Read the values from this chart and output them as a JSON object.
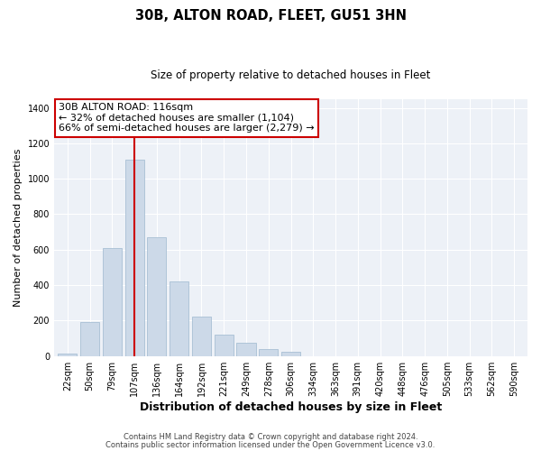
{
  "title": "30B, ALTON ROAD, FLEET, GU51 3HN",
  "subtitle": "Size of property relative to detached houses in Fleet",
  "xlabel": "Distribution of detached houses by size in Fleet",
  "ylabel": "Number of detached properties",
  "bar_values": [
    15,
    190,
    610,
    1110,
    670,
    420,
    220,
    120,
    75,
    40,
    25,
    0,
    0,
    0,
    0,
    0,
    0,
    0,
    0,
    0,
    0
  ],
  "bar_labels": [
    "22sqm",
    "50sqm",
    "79sqm",
    "107sqm",
    "136sqm",
    "164sqm",
    "192sqm",
    "221sqm",
    "249sqm",
    "278sqm",
    "306sqm",
    "334sqm",
    "363sqm",
    "391sqm",
    "420sqm",
    "448sqm",
    "476sqm",
    "505sqm",
    "533sqm",
    "562sqm",
    "590sqm"
  ],
  "bar_color": "#ccd9e8",
  "bar_edge_color": "#a8bfd4",
  "vline_index": 3,
  "vline_color": "#cc0000",
  "annotation_title": "30B ALTON ROAD: 116sqm",
  "annotation_line1": "← 32% of detached houses are smaller (1,104)",
  "annotation_line2": "66% of semi-detached houses are larger (2,279) →",
  "annotation_box_color": "#ffffff",
  "annotation_box_edge": "#cc0000",
  "ylim": [
    0,
    1450
  ],
  "yticks": [
    0,
    200,
    400,
    600,
    800,
    1000,
    1200,
    1400
  ],
  "footnote1": "Contains HM Land Registry data © Crown copyright and database right 2024.",
  "footnote2": "Contains public sector information licensed under the Open Government Licence v3.0.",
  "background_color": "#edf1f7",
  "grid_color": "#ffffff",
  "title_fontsize": 10.5,
  "subtitle_fontsize": 8.5,
  "ylabel_fontsize": 8,
  "xlabel_fontsize": 9,
  "tick_fontsize": 7,
  "footnote_fontsize": 6,
  "annot_fontsize": 8
}
